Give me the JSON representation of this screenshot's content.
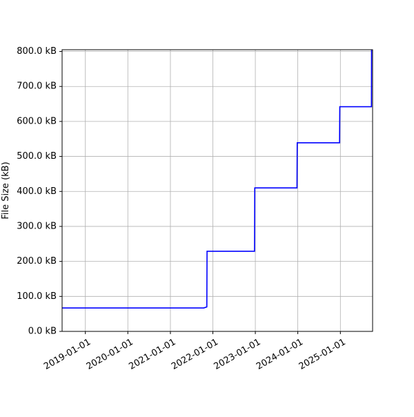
{
  "chart_data": {
    "type": "line",
    "title": "",
    "xlabel": "",
    "ylabel": "File Size (kB)",
    "x_ticks": [
      "2019-01-01",
      "2020-01-01",
      "2021-01-01",
      "2022-01-01",
      "2023-01-01",
      "2024-01-01",
      "2025-01-01"
    ],
    "y_ticks": [
      "0.0 kB",
      "100.0 kB",
      "200.0 kB",
      "300.0 kB",
      "400.0 kB",
      "500.0 kB",
      "600.0 kB",
      "700.0 kB",
      "800.0 kB"
    ],
    "xlim": [
      "2018-06-15",
      "2025-10-05"
    ],
    "ylim": [
      0,
      805
    ],
    "grid": true,
    "colors": {
      "line": "#0000ff",
      "grid": "#b0b0b0",
      "axis": "#000000"
    },
    "series": [
      {
        "x": [
          "2018-06-15",
          "2021-10-15",
          "2021-11-10",
          "2021-11-12",
          "2022-12-25",
          "2022-12-27",
          "2023-12-25",
          "2023-12-27",
          "2024-12-25",
          "2024-12-27",
          "2025-09-25",
          "2025-09-26"
        ],
        "y": [
          67,
          67,
          70,
          229,
          229,
          410,
          410,
          539,
          539,
          642,
          642,
          805
        ]
      }
    ]
  }
}
